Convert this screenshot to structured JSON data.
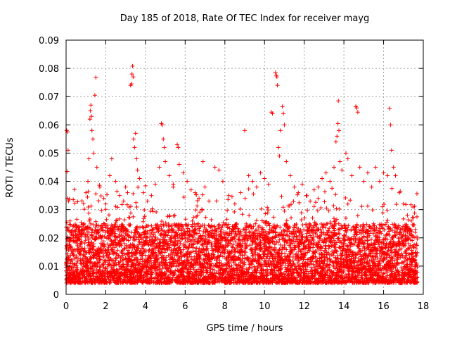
{
  "chart_data": {
    "type": "scatter",
    "title": "Day 185 of 2018, Rate Of TEC Index for receiver mayg",
    "xlabel": "GPS time / hours",
    "ylabel": "ROTI / TECUs",
    "xlim": [
      0,
      18
    ],
    "ylim": [
      0,
      0.09
    ],
    "xticks": [
      0,
      2,
      4,
      6,
      8,
      10,
      12,
      14,
      16,
      18
    ],
    "xtick_labels": [
      "0",
      "2",
      "4",
      "6",
      "8",
      "10",
      "12",
      "14",
      "16",
      "18"
    ],
    "yticks": [
      0,
      0.01,
      0.02,
      0.03,
      0.04,
      0.05,
      0.06,
      0.07,
      0.08,
      0.09
    ],
    "ytick_labels": [
      "0",
      "0.01",
      "0.02",
      "0.03",
      "0.04",
      "0.05",
      "0.06",
      "0.07",
      "0.08",
      "0.09"
    ],
    "grid": true,
    "marker": "+",
    "color": "#ff0000",
    "series": [
      {
        "name": "ROTI",
        "points": [
          [
            0.03,
            0.058
          ],
          [
            0.08,
            0.0575
          ],
          [
            0.1,
            0.051
          ],
          [
            0.05,
            0.0435
          ],
          [
            0.07,
            0.034
          ],
          [
            0.12,
            0.033
          ],
          [
            0.2,
            0.026
          ],
          [
            0.35,
            0.024
          ],
          [
            0.5,
            0.021
          ],
          [
            0.7,
            0.022
          ],
          [
            0.9,
            0.025
          ],
          [
            1.0,
            0.036
          ],
          [
            1.1,
            0.04
          ],
          [
            1.15,
            0.048
          ],
          [
            1.2,
            0.062
          ],
          [
            1.22,
            0.065
          ],
          [
            1.25,
            0.067
          ],
          [
            1.28,
            0.063
          ],
          [
            1.3,
            0.058
          ],
          [
            1.35,
            0.055
          ],
          [
            1.4,
            0.05
          ],
          [
            1.45,
            0.0705
          ],
          [
            1.5,
            0.0768
          ],
          [
            1.55,
            0.045
          ],
          [
            1.7,
            0.038
          ],
          [
            1.9,
            0.034
          ],
          [
            2.0,
            0.032
          ],
          [
            2.2,
            0.042
          ],
          [
            2.3,
            0.048
          ],
          [
            2.5,
            0.04
          ],
          [
            2.7,
            0.035
          ],
          [
            2.9,
            0.033
          ],
          [
            3.0,
            0.038
          ],
          [
            3.1,
            0.036
          ],
          [
            3.25,
            0.074
          ],
          [
            3.3,
            0.0745
          ],
          [
            3.32,
            0.078
          ],
          [
            3.35,
            0.0808
          ],
          [
            3.38,
            0.077
          ],
          [
            3.4,
            0.055
          ],
          [
            3.45,
            0.052
          ],
          [
            3.5,
            0.057
          ],
          [
            3.55,
            0.048
          ],
          [
            3.6,
            0.044
          ],
          [
            3.7,
            0.041
          ],
          [
            3.9,
            0.036
          ],
          [
            4.1,
            0.033
          ],
          [
            4.3,
            0.035
          ],
          [
            4.5,
            0.039
          ],
          [
            4.7,
            0.045
          ],
          [
            4.8,
            0.0605
          ],
          [
            4.85,
            0.06
          ],
          [
            4.9,
            0.055
          ],
          [
            4.95,
            0.052
          ],
          [
            5.0,
            0.047
          ],
          [
            5.2,
            0.042
          ],
          [
            5.4,
            0.038
          ],
          [
            5.6,
            0.053
          ],
          [
            5.65,
            0.052
          ],
          [
            5.7,
            0.046
          ],
          [
            5.9,
            0.043
          ],
          [
            6.1,
            0.04
          ],
          [
            6.3,
            0.037
          ],
          [
            6.5,
            0.036
          ],
          [
            6.7,
            0.034
          ],
          [
            6.9,
            0.047
          ],
          [
            7.0,
            0.038
          ],
          [
            7.2,
            0.033
          ],
          [
            7.5,
            0.045
          ],
          [
            7.7,
            0.044
          ],
          [
            7.9,
            0.04
          ],
          [
            8.2,
            0.035
          ],
          [
            8.5,
            0.032
          ],
          [
            8.8,
            0.036
          ],
          [
            9.0,
            0.058
          ],
          [
            9.2,
            0.042
          ],
          [
            9.4,
            0.04
          ],
          [
            9.6,
            0.038
          ],
          [
            9.8,
            0.043
          ],
          [
            10.0,
            0.041
          ],
          [
            10.2,
            0.039
          ],
          [
            10.35,
            0.0645
          ],
          [
            10.4,
            0.064
          ],
          [
            10.55,
            0.0785
          ],
          [
            10.6,
            0.0775
          ],
          [
            10.62,
            0.077
          ],
          [
            10.65,
            0.074
          ],
          [
            10.7,
            0.052
          ],
          [
            10.75,
            0.049
          ],
          [
            10.8,
            0.058
          ],
          [
            10.9,
            0.0665
          ],
          [
            10.95,
            0.064
          ],
          [
            11.0,
            0.06
          ],
          [
            11.1,
            0.047
          ],
          [
            11.3,
            0.042
          ],
          [
            11.5,
            0.038
          ],
          [
            11.7,
            0.036
          ],
          [
            11.9,
            0.039
          ],
          [
            12.1,
            0.035
          ],
          [
            12.3,
            0.033
          ],
          [
            12.5,
            0.037
          ],
          [
            12.7,
            0.038
          ],
          [
            12.9,
            0.041
          ],
          [
            13.1,
            0.043
          ],
          [
            13.3,
            0.04
          ],
          [
            13.5,
            0.045
          ],
          [
            13.6,
            0.054
          ],
          [
            13.65,
            0.056
          ],
          [
            13.7,
            0.0605
          ],
          [
            13.72,
            0.0685
          ],
          [
            13.75,
            0.058
          ],
          [
            13.8,
            0.047
          ],
          [
            13.9,
            0.044
          ],
          [
            14.1,
            0.05
          ],
          [
            14.2,
            0.048
          ],
          [
            14.4,
            0.042
          ],
          [
            14.6,
            0.0665
          ],
          [
            14.65,
            0.066
          ],
          [
            14.7,
            0.0645
          ],
          [
            14.8,
            0.045
          ],
          [
            15.0,
            0.04
          ],
          [
            15.2,
            0.043
          ],
          [
            15.4,
            0.038
          ],
          [
            15.6,
            0.045
          ],
          [
            15.8,
            0.04
          ],
          [
            16.0,
            0.043
          ],
          [
            16.2,
            0.042
          ],
          [
            16.3,
            0.0658
          ],
          [
            16.35,
            0.06
          ],
          [
            16.4,
            0.051
          ],
          [
            16.5,
            0.045
          ],
          [
            16.6,
            0.042
          ],
          [
            16.8,
            0.036
          ],
          [
            17.0,
            0.032
          ],
          [
            17.2,
            0.028
          ],
          [
            17.4,
            0.026
          ],
          [
            17.6,
            0.023
          ]
        ]
      }
    ],
    "dense_band": {
      "description": "dense cloud of ROTI samples, every 0.02 h",
      "x_range": [
        0.0,
        17.7
      ],
      "base_y_range": [
        0.004,
        0.025
      ]
    }
  }
}
